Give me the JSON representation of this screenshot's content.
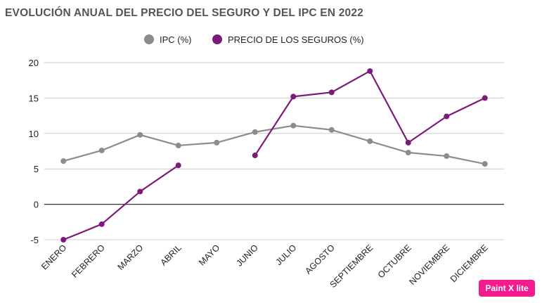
{
  "chart_data": {
    "type": "line",
    "title": "EVOLUCIÓN ANUAL DEL PRECIO DEL SEGURO Y DEL IPC EN 2022",
    "categories": [
      "ENERO",
      "FEBRERO",
      "MARZO",
      "ABRIL",
      "MAYO",
      "JUNIO",
      "JULIO",
      "AGOSTO",
      "SEPTIEMBRE",
      "OCTUBRE",
      "NOVIEMBRE",
      "DICIEMBRE"
    ],
    "series": [
      {
        "name": "IPC (%)",
        "color": "#8c8c8c",
        "values": [
          6.1,
          7.6,
          9.8,
          8.3,
          8.7,
          10.2,
          11.1,
          10.5,
          8.9,
          7.3,
          6.8,
          5.7
        ]
      },
      {
        "name": "PRECIO DE LOS SEGUROS (%)",
        "color": "#7b1a7a",
        "values": [
          -5.0,
          -2.8,
          1.8,
          5.5,
          null,
          6.9,
          15.2,
          15.8,
          18.8,
          8.7,
          12.4,
          15.0
        ]
      }
    ],
    "y_ticks": [
      -5,
      0,
      5,
      10,
      15,
      20
    ],
    "ylim": [
      -5,
      20
    ],
    "xlabel": "",
    "ylabel": "",
    "grid": true,
    "legend_position": "top"
  },
  "watermark": "Paint X lite"
}
